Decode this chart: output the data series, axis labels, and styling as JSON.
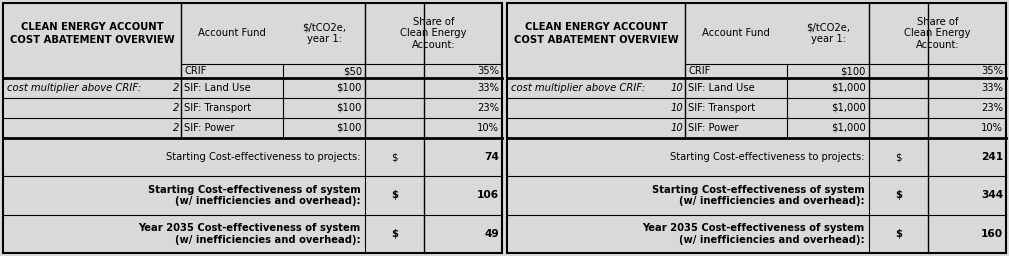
{
  "bg_color": "#d9d9d9",
  "border_color": "#000000",
  "text_color": "#000000",
  "tables": [
    {
      "title_line1": "CLEAN ENERGY ACCOUNT",
      "title_line2": "COST ABATEMENT OVERVIEW",
      "header_col2": "Account Fund",
      "header_col3": "$/tCO2e,\nyear 1:",
      "header_col4": "Share of\nClean Energy\nAccount:",
      "crif_label": "CRIF",
      "crif_cost": "$50",
      "crif_share": "35%",
      "multiplier_label": "cost multiplier above CRIF:",
      "multiplier_value": "2",
      "sif_rows": [
        {
          "fund": "SIF: Land Use",
          "cost": "$100",
          "share": "33%"
        },
        {
          "fund": "SIF: Transport",
          "cost": "$100",
          "share": "23%"
        },
        {
          "fund": "SIF: Power",
          "cost": "$100",
          "share": "10%"
        }
      ],
      "bottom_rows": [
        {
          "label": "Starting Cost-effectiveness to projects:",
          "dollar": "$",
          "value": "74",
          "bold": false
        },
        {
          "label": "Starting Cost-effectiveness of system\n(w/ inefficiencies and overhead):",
          "dollar": "$",
          "value": "106",
          "bold": true
        },
        {
          "label": "Year 2035 Cost-effectiveness of system\n(w/ inefficiencies and overhead):",
          "dollar": "$",
          "value": "49",
          "bold": true
        }
      ]
    },
    {
      "title_line1": "CLEAN ENERGY ACCOUNT",
      "title_line2": "COST ABATEMENT OVERVIEW",
      "header_col2": "Account Fund",
      "header_col3": "$/tCO2e,\nyear 1:",
      "header_col4": "Share of\nClean Energy\nAccount:",
      "crif_label": "CRIF",
      "crif_cost": "$100",
      "crif_share": "35%",
      "multiplier_label": "cost multiplier above CRIF:",
      "multiplier_value": "10",
      "sif_rows": [
        {
          "fund": "SIF: Land Use",
          "cost": "$1,000",
          "share": "33%"
        },
        {
          "fund": "SIF: Transport",
          "cost": "$1,000",
          "share": "23%"
        },
        {
          "fund": "SIF: Power",
          "cost": "$1,000",
          "share": "10%"
        }
      ],
      "bottom_rows": [
        {
          "label": "Starting Cost-effectiveness to projects:",
          "dollar": "$",
          "value": "241",
          "bold": false
        },
        {
          "label": "Starting Cost-effectiveness of system\n(w/ inefficiencies and overhead):",
          "dollar": "$",
          "value": "344",
          "bold": true
        },
        {
          "label": "Year 2035 Cost-effectiveness of system\n(w/ inefficiencies and overhead):",
          "dollar": "$",
          "value": "160",
          "bold": true
        }
      ]
    }
  ]
}
